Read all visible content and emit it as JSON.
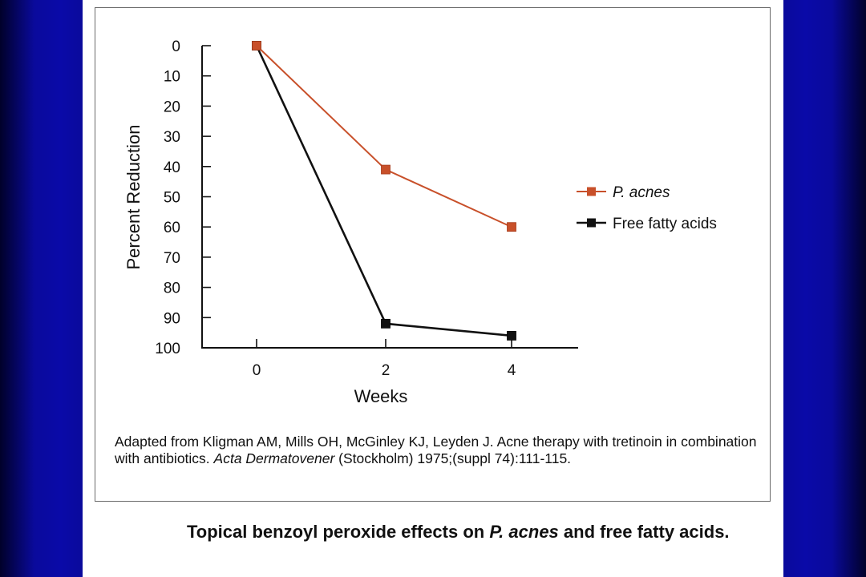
{
  "chart_data": {
    "type": "line",
    "xlabel": "Weeks",
    "ylabel": "Percent Reduction",
    "x": [
      0,
      2,
      4
    ],
    "x_ticks": [
      "0",
      "2",
      "4"
    ],
    "y_ticks": [
      "0",
      "10",
      "20",
      "30",
      "40",
      "50",
      "60",
      "70",
      "80",
      "90",
      "100"
    ],
    "ylim": [
      0,
      100
    ],
    "y_inverted": true,
    "grid": false,
    "legend_placement": "right",
    "series": [
      {
        "name": "P. acnes",
        "values": [
          0,
          41,
          60
        ],
        "color": "#c8502a",
        "marker": "square"
      },
      {
        "name": "Free fatty acids",
        "values": [
          0,
          92,
          96
        ],
        "color": "#111111",
        "marker": "square"
      }
    ]
  },
  "citation": {
    "text_1": "Adapted from Kligman AM, Mills OH, McGinley KJ, Leyden J. Acne therapy with tretinoin in combination with antibiotics. ",
    "journal": "Acta Dermatovener",
    "text_2": " (Stockholm) 1975;(suppl 74):111-115."
  },
  "caption": {
    "text_1": "Topical benzoyl peroxide effects on ",
    "organism": "P. acnes",
    "text_2": " and free fatty acids."
  },
  "colors": {
    "background": "#0a0aa8",
    "panel": "#ffffff",
    "p_acnes": "#c8502a",
    "ffa": "#111111"
  }
}
